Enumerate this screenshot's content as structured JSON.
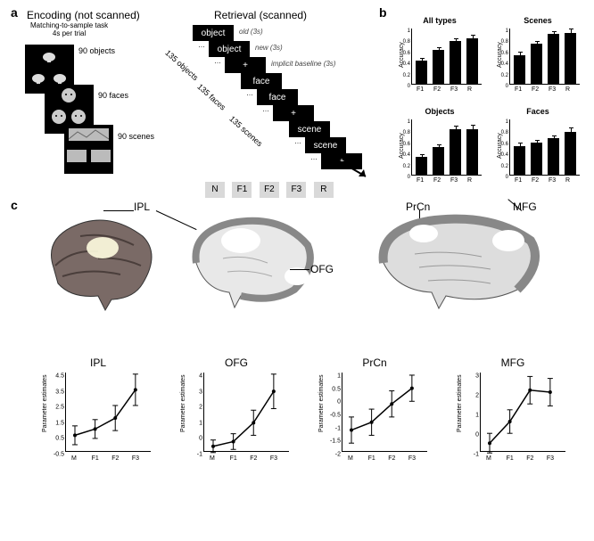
{
  "panelA": {
    "label": "a",
    "encoding": {
      "title": "Encoding (not scanned)",
      "subtitle": "Matching-to-sample task\n4s per trial",
      "sets": [
        {
          "count": "90 objects"
        },
        {
          "count": "90 faces"
        },
        {
          "count": "90 scenes"
        }
      ]
    },
    "retrieval": {
      "title": "Retrieval (scanned)",
      "rows": [
        {
          "word": "object",
          "note": "old (3s)"
        },
        {
          "word": "object",
          "note": "new (3s)"
        },
        {
          "word": "+",
          "note": "implicit baseline (3s)"
        },
        {
          "word": "face",
          "note": ""
        },
        {
          "word": "face",
          "note": ""
        },
        {
          "word": "+",
          "note": ""
        },
        {
          "word": "scene",
          "note": ""
        },
        {
          "word": "scene",
          "note": ""
        },
        {
          "word": "+",
          "note": ""
        }
      ],
      "diags": [
        "135 objects",
        "135 faces",
        "135 scenes"
      ],
      "responses": [
        "N",
        "F1",
        "F2",
        "F3",
        "R"
      ]
    }
  },
  "panelB": {
    "label": "b",
    "ylabel": "Accuracy",
    "charts": [
      {
        "title": "All types",
        "cats": [
          "F1",
          "F2",
          "F3",
          "R"
        ],
        "vals": [
          0.42,
          0.62,
          0.78,
          0.82
        ],
        "err": [
          0.03,
          0.03,
          0.03,
          0.05
        ],
        "ymax": 1.0,
        "yticks": [
          0,
          0.2,
          0.4,
          0.6,
          0.8,
          1.0
        ]
      },
      {
        "title": "Scenes",
        "cats": [
          "F1",
          "F2",
          "F3",
          "R"
        ],
        "vals": [
          0.52,
          0.72,
          0.9,
          0.92
        ],
        "err": [
          0.04,
          0.04,
          0.04,
          0.06
        ],
        "ymax": 1.0,
        "yticks": [
          0,
          0.2,
          0.4,
          0.6,
          0.8,
          1.0
        ]
      },
      {
        "title": "Objects",
        "cats": [
          "F1",
          "F2",
          "F3",
          "R"
        ],
        "vals": [
          0.32,
          0.5,
          0.83,
          0.82
        ],
        "err": [
          0.03,
          0.04,
          0.04,
          0.06
        ],
        "ymax": 1.0,
        "yticks": [
          0,
          0.2,
          0.4,
          0.6,
          0.8,
          1.0
        ]
      },
      {
        "title": "Faces",
        "cats": [
          "F1",
          "F2",
          "F3",
          "R"
        ],
        "vals": [
          0.52,
          0.58,
          0.66,
          0.78
        ],
        "err": [
          0.04,
          0.04,
          0.04,
          0.06
        ],
        "ymax": 1.0,
        "yticks": [
          0,
          0.2,
          0.4,
          0.6,
          0.8,
          1.0
        ]
      }
    ],
    "ytick_labels": [
      "0",
      "0.2",
      "0.4",
      "0.6",
      "0.8",
      "1.0"
    ]
  },
  "panelC": {
    "label": "c",
    "regions": [
      "IPL",
      "OFG",
      "PrCn",
      "MFG"
    ],
    "ylabel": "Parameter estimates",
    "xcats": [
      "M",
      "F1",
      "F2",
      "F3"
    ],
    "series": [
      {
        "title": "IPL",
        "yticks": [
          -0.5,
          0.5,
          1.5,
          2.5,
          3.5,
          4.5
        ],
        "vals": [
          0.5,
          0.9,
          1.6,
          3.4
        ],
        "err": [
          0.6,
          0.6,
          0.8,
          1.0
        ]
      },
      {
        "title": "OFG",
        "yticks": [
          -1,
          0,
          1,
          2,
          3,
          4
        ],
        "vals": [
          -0.7,
          -0.4,
          0.8,
          2.8
        ],
        "err": [
          0.4,
          0.5,
          0.8,
          1.1
        ]
      },
      {
        "title": "PrCn",
        "yticks": [
          -2.0,
          -1.5,
          -1.0,
          -0.5,
          0,
          0.5,
          1.0
        ],
        "vals": [
          -1.2,
          -0.9,
          -0.2,
          0.4
        ],
        "err": [
          0.5,
          0.5,
          0.5,
          0.5
        ]
      },
      {
        "title": "MFG",
        "yticks": [
          -1.0,
          0,
          1.0,
          2.0,
          3.0
        ],
        "vals": [
          -0.6,
          0.5,
          2.1,
          2.0
        ],
        "err": [
          0.5,
          0.6,
          0.7,
          0.7
        ]
      }
    ]
  },
  "style": {
    "bar_color": "#000000",
    "bg": "#ffffff",
    "box_gray": "#d9d9d9"
  }
}
